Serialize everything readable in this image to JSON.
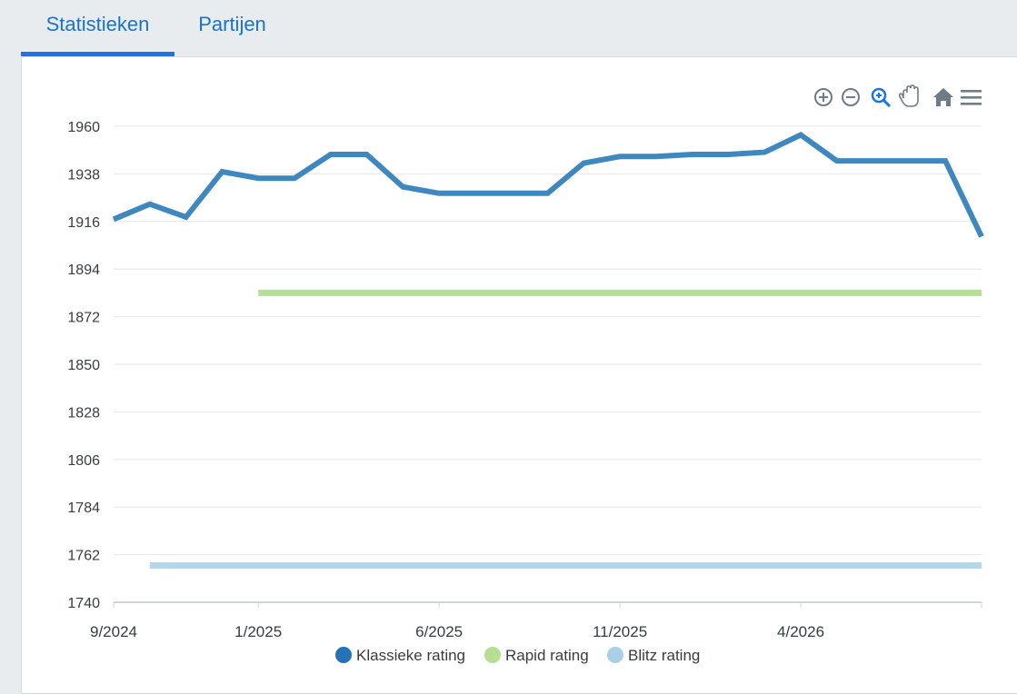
{
  "tabs": [
    {
      "label": "Statistieken",
      "active": true
    },
    {
      "label": "Partijen",
      "active": false
    }
  ],
  "toolbar": {
    "icons": [
      "zoom-in-icon",
      "zoom-out-icon",
      "zoom-selection-icon",
      "pan-icon",
      "reset-zoom-home-icon",
      "menu-icon"
    ],
    "active_icon": "zoom-selection-icon"
  },
  "colors": {
    "accent": "#1a73e8",
    "klassiek": "#3f88bf",
    "rapid": "#b5df92",
    "blitz": "#b3d6ea",
    "legend_klassiek": "#2672b8",
    "legend_rapid": "#b5df92",
    "legend_blitz": "#a9d0e6"
  },
  "chart_data": {
    "type": "line",
    "title": "",
    "xlabel": "",
    "ylabel": "",
    "ylim": [
      1740,
      1960
    ],
    "yticks": [
      1740,
      1762,
      1784,
      1806,
      1828,
      1850,
      1872,
      1894,
      1916,
      1938,
      1960
    ],
    "xlim": [
      "2024-09",
      "2026-09"
    ],
    "xticks": [
      {
        "label": "9/2024",
        "date": "2024-09"
      },
      {
        "label": "1/2025",
        "date": "2025-01"
      },
      {
        "label": "6/2025",
        "date": "2025-06"
      },
      {
        "label": "11/2025",
        "date": "2025-11"
      },
      {
        "label": "4/2026",
        "date": "2026-04"
      }
    ],
    "grid": true,
    "legend": "bottom-center",
    "series": [
      {
        "name": "Klassieke rating",
        "color": "#3f88bf",
        "points": [
          [
            "2024-09",
            1917
          ],
          [
            "2024-10",
            1924
          ],
          [
            "2024-11",
            1918
          ],
          [
            "2024-12",
            1939
          ],
          [
            "2025-01",
            1936
          ],
          [
            "2025-02",
            1936
          ],
          [
            "2025-03",
            1947
          ],
          [
            "2025-04",
            1947
          ],
          [
            "2025-05",
            1932
          ],
          [
            "2025-06",
            1929
          ],
          [
            "2025-07",
            1929
          ],
          [
            "2025-08",
            1929
          ],
          [
            "2025-09",
            1929
          ],
          [
            "2025-10",
            1943
          ],
          [
            "2025-11",
            1946
          ],
          [
            "2025-12",
            1946
          ],
          [
            "2026-01",
            1947
          ],
          [
            "2026-02",
            1947
          ],
          [
            "2026-03",
            1948
          ],
          [
            "2026-04",
            1956
          ],
          [
            "2026-05",
            1944
          ],
          [
            "2026-06",
            1944
          ],
          [
            "2026-07",
            1944
          ],
          [
            "2026-08",
            1944
          ],
          [
            "2026-09",
            1909
          ]
        ]
      },
      {
        "name": "Rapid rating",
        "color": "#b5df92",
        "points": [
          [
            "2025-01",
            1883
          ],
          [
            "2026-09",
            1883
          ]
        ]
      },
      {
        "name": "Blitz rating",
        "color": "#b3d6ea",
        "points": [
          [
            "2024-10",
            1757
          ],
          [
            "2026-09",
            1757
          ]
        ]
      }
    ]
  }
}
